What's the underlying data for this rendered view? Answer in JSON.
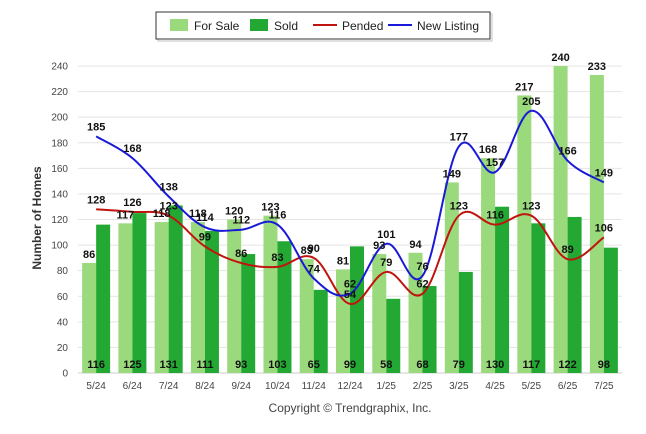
{
  "chart_data": {
    "type": "bar",
    "categories": [
      "5/24",
      "6/24",
      "7/24",
      "8/24",
      "9/24",
      "10/24",
      "11/24",
      "12/24",
      "1/25",
      "2/25",
      "3/25",
      "4/25",
      "5/25",
      "6/25",
      "7/25"
    ],
    "series": [
      {
        "name": "For Sale",
        "type": "bar",
        "color": "#9bd97d",
        "values": [
          86,
          117,
          118,
          118,
          120,
          123,
          89,
          81,
          93,
          94,
          149,
          168,
          217,
          240,
          233
        ]
      },
      {
        "name": "Sold",
        "type": "bar",
        "color": "#22a833",
        "values": [
          116,
          125,
          131,
          111,
          93,
          103,
          65,
          99,
          58,
          68,
          79,
          130,
          117,
          122,
          98
        ]
      },
      {
        "name": "Pended",
        "type": "line",
        "color": "#c0150f",
        "values": [
          128,
          126,
          123,
          99,
          86,
          83,
          90,
          54,
          79,
          62,
          123,
          116,
          123,
          89,
          106
        ]
      },
      {
        "name": "New Listing",
        "type": "line",
        "color": "#1a1ad6",
        "values": [
          185,
          168,
          138,
          114,
          112,
          116,
          74,
          62,
          101,
          76,
          177,
          157,
          205,
          166,
          149
        ]
      }
    ],
    "ylabel": "Number of Homes",
    "xlabel": "",
    "ylim": [
      0,
      240
    ],
    "yticks": [
      0,
      20,
      40,
      60,
      80,
      100,
      120,
      140,
      160,
      180,
      200,
      220,
      240
    ],
    "grid": true,
    "legend_position": "top-center"
  },
  "footer": {
    "copyright": "Copyright © Trendgraphix, Inc."
  }
}
